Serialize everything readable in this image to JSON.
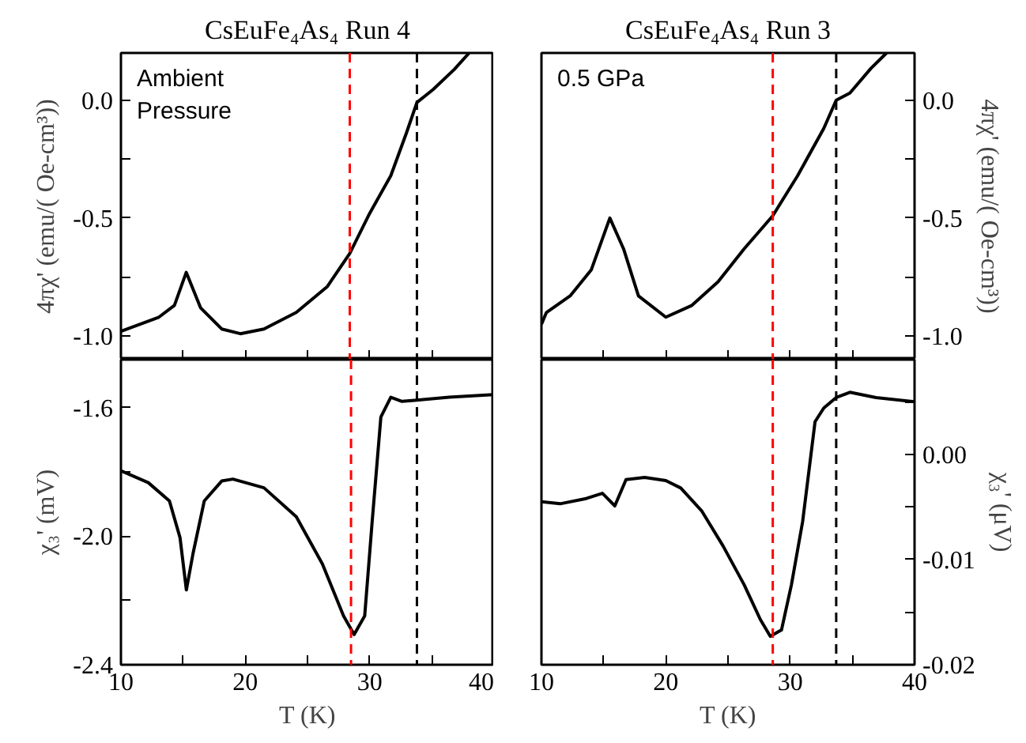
{
  "chart_data": [
    {
      "type": "line",
      "title": "CsEuFe₄As₄ Run 4",
      "ylabel": "4πχ' (emu/( Oe-cm³))",
      "annotations": [
        "Ambient\nPressure"
      ],
      "tick_labels": "y",
      "line_style": "solid",
      "xlim": [
        10,
        40
      ],
      "ylim": [
        -1.1,
        0.2
      ],
      "xticks": [
        10,
        {
          "value": 15,
          "label": null
        },
        20,
        {
          "value": 25,
          "label": null
        },
        30,
        {
          "value": 35,
          "label": null
        },
        40
      ],
      "yticks": [
        {
          "value": -1.0,
          "label": "-1.0"
        },
        {
          "value": -0.75,
          "label": null
        },
        {
          "value": -0.5,
          "label": "-0.5"
        },
        {
          "value": -0.25,
          "label": null
        },
        {
          "value": 0.0,
          "label": "0.0"
        }
      ],
      "ref_lines": [
        {
          "axis": "x",
          "value": 28.4,
          "color": "#ff0000",
          "line_style": "dashed"
        },
        {
          "axis": "x",
          "value": 33.8,
          "color": "#000000",
          "line_style": "dashed"
        }
      ],
      "series": [
        {
          "color": "#000000",
          "x": [
            10.0,
            13.05,
            14.3,
            15.25,
            16.4,
            18.1,
            19.6,
            21.5,
            24.1,
            26.6,
            28.4,
            30.0,
            31.7,
            32.95,
            33.8,
            35.1,
            36.8,
            38.0
          ],
          "values": [
            -0.98,
            -0.92,
            -0.87,
            -0.73,
            -0.88,
            -0.97,
            -0.99,
            -0.97,
            -0.9,
            -0.79,
            -0.65,
            -0.48,
            -0.32,
            -0.14,
            -0.01,
            0.045,
            0.13,
            0.2
          ]
        }
      ]
    },
    {
      "type": "line",
      "title": "CsEuFe₄As₄ Run 3",
      "y2label": "4πχ' (emu/( Oe-cm³))",
      "annotations": [
        "0.5 GPa"
      ],
      "tick_labels": "y",
      "line_style": "solid",
      "xlim": [
        10,
        40
      ],
      "y2lim": [
        -1.1,
        0.2
      ],
      "xticks": [
        10,
        {
          "value": 15,
          "label": null
        },
        20,
        {
          "value": 25,
          "label": null
        },
        30,
        {
          "value": 35,
          "label": null
        },
        40
      ],
      "y2ticks": [
        {
          "value": -1.0,
          "label": "-1.0"
        },
        {
          "value": -0.75,
          "label": null
        },
        {
          "value": -0.5,
          "label": "-0.5"
        },
        {
          "value": -0.25,
          "label": null
        },
        {
          "value": 0.0,
          "label": "0.0"
        }
      ],
      "ref_lines": [
        {
          "axis": "x",
          "value": 28.6,
          "color": "#ff0000",
          "line_style": "dashed"
        },
        {
          "axis": "x",
          "value": 33.7,
          "color": "#000000",
          "line_style": "dashed"
        }
      ],
      "series": [
        {
          "color": "#000000",
          "axis": "y2",
          "x": [
            10.0,
            10.4,
            12.3,
            14.0,
            15.5,
            16.6,
            17.8,
            20.0,
            22.1,
            24.2,
            26.3,
            28.6,
            30.6,
            32.7,
            33.7,
            34.8,
            36.5,
            37.75
          ],
          "values": [
            -0.95,
            -0.9,
            -0.83,
            -0.72,
            -0.5,
            -0.63,
            -0.83,
            -0.92,
            -0.87,
            -0.77,
            -0.63,
            -0.49,
            -0.32,
            -0.12,
            0.0,
            0.03,
            0.135,
            0.2
          ]
        }
      ]
    },
    {
      "type": "line",
      "xlabel": "T (K)",
      "ylabel": "χ₃' (mV)",
      "line_style": "solid",
      "xlim": [
        10,
        40
      ],
      "ylim": [
        -2.4,
        -1.45
      ],
      "xticks": [
        10,
        {
          "value": 15,
          "label": null
        },
        20,
        {
          "value": 25,
          "label": null
        },
        30,
        {
          "value": 35,
          "label": null
        },
        40
      ],
      "yticks": [
        {
          "value": -2.4,
          "label": "-2.4"
        },
        {
          "value": -2.2,
          "label": null
        },
        {
          "value": -2.0,
          "label": "-2.0"
        },
        {
          "value": -1.8,
          "label": null
        },
        {
          "value": -1.6,
          "label": "-1.6"
        }
      ],
      "ref_lines": [
        {
          "axis": "x",
          "value": 28.5,
          "color": "#ff0000",
          "line_style": "dashed"
        },
        {
          "axis": "x",
          "value": 33.8,
          "color": "#000000",
          "line_style": "dashed"
        }
      ],
      "series": [
        {
          "color": "#000000",
          "x": [
            10.0,
            12.2,
            13.9,
            14.75,
            15.26,
            15.8,
            16.7,
            18.1,
            19.0,
            21.5,
            24.1,
            26.2,
            27.9,
            28.75,
            29.6,
            30.2,
            30.9,
            31.7,
            32.6,
            33.6,
            36.4,
            40.0
          ],
          "values": [
            -1.796,
            -1.833,
            -1.89,
            -2.004,
            -2.167,
            -2.053,
            -1.89,
            -1.828,
            -1.822,
            -1.849,
            -1.939,
            -2.086,
            -2.248,
            -2.306,
            -2.248,
            -1.955,
            -1.629,
            -1.567,
            -1.58,
            -1.577,
            -1.567,
            -1.559
          ]
        }
      ]
    },
    {
      "type": "line",
      "xlabel": "T (K)",
      "y2label": "χ₃' (μV)",
      "line_style": "solid",
      "xlim": [
        10,
        40
      ],
      "y2lim": [
        -0.02,
        0.009
      ],
      "xticks": [
        10,
        {
          "value": 15,
          "label": null
        },
        20,
        {
          "value": 25,
          "label": null
        },
        30,
        {
          "value": 35,
          "label": null
        },
        40
      ],
      "y2ticks": [
        {
          "value": -0.02,
          "label": "-0.02"
        },
        {
          "value": -0.015,
          "label": null
        },
        {
          "value": -0.01,
          "label": "-0.01"
        },
        {
          "value": -0.005,
          "label": null
        },
        {
          "value": 0.0,
          "label": "0.00"
        },
        {
          "value": 0.005,
          "label": null
        }
      ],
      "ref_lines": [
        {
          "axis": "x",
          "value": 28.6,
          "color": "#ff0000",
          "line_style": "dashed"
        },
        {
          "axis": "x",
          "value": 33.7,
          "color": "#000000",
          "line_style": "dashed"
        }
      ],
      "series": [
        {
          "color": "#000000",
          "axis": "y2",
          "x": [
            10.0,
            11.5,
            13.6,
            14.9,
            15.9,
            16.8,
            18.3,
            20.0,
            21.2,
            22.9,
            24.6,
            26.3,
            27.6,
            28.4,
            29.3,
            30.1,
            31.0,
            32.0,
            32.7,
            33.7,
            34.8,
            36.9,
            40.0
          ],
          "values": [
            -0.0045,
            -0.0047,
            -0.0042,
            -0.0037,
            -0.0049,
            -0.0024,
            -0.0022,
            -0.0025,
            -0.0032,
            -0.0054,
            -0.0087,
            -0.0124,
            -0.0157,
            -0.0173,
            -0.0167,
            -0.0124,
            -0.0064,
            0.0031,
            0.0044,
            0.0054,
            0.0059,
            0.0054,
            0.005
          ]
        }
      ]
    }
  ]
}
